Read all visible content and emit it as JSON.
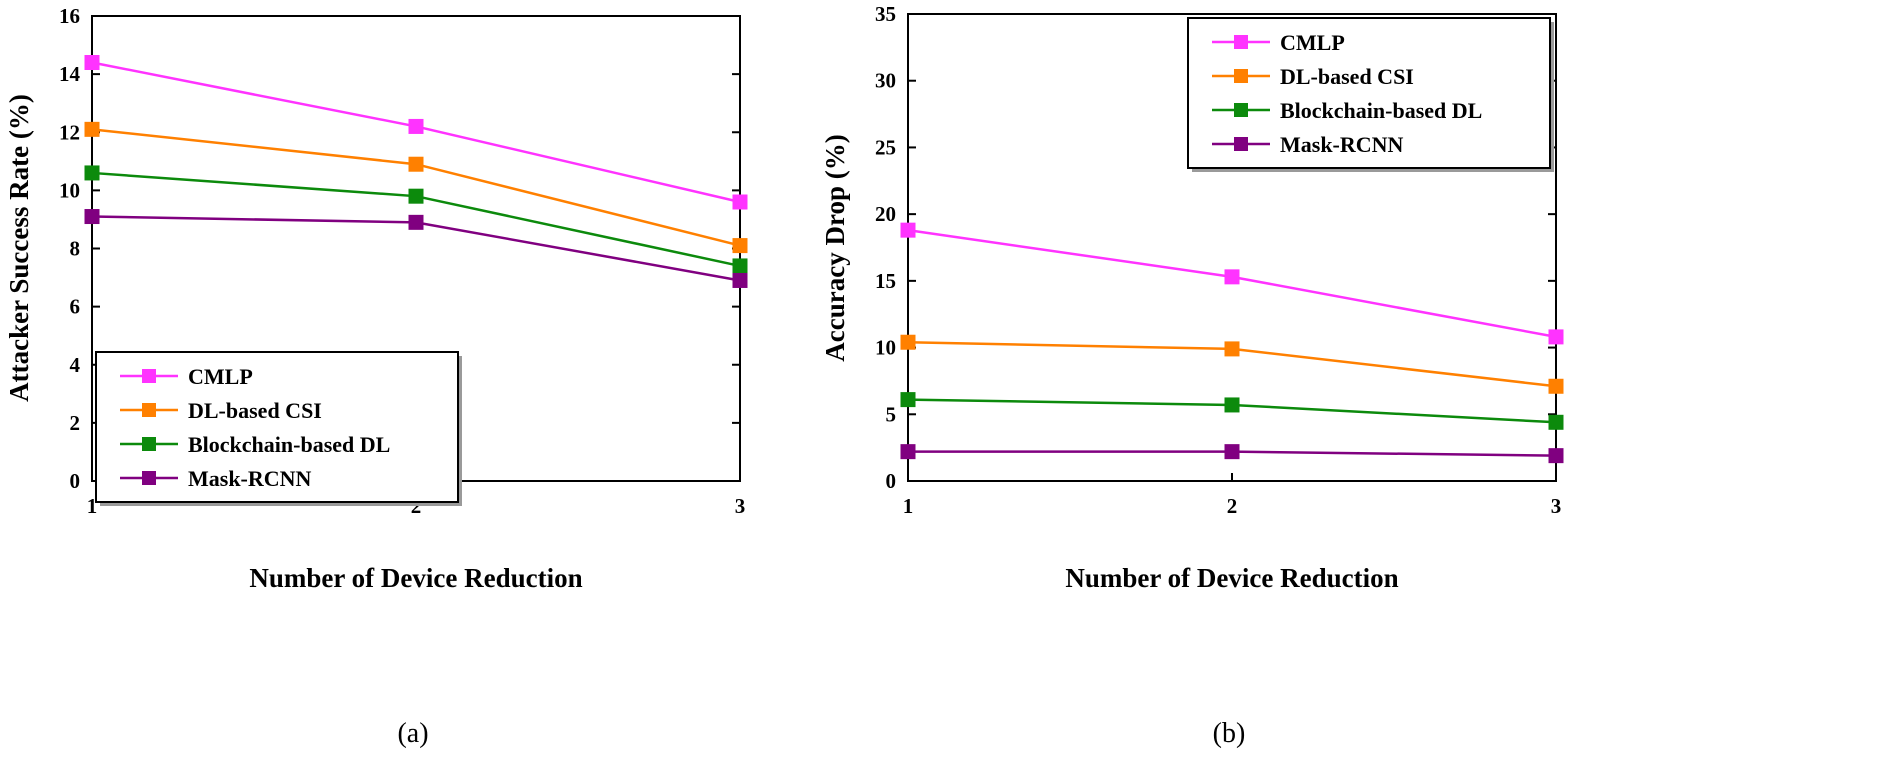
{
  "chart_data": [
    {
      "type": "line",
      "caption": "(a)",
      "xlabel": "Number of Device Reduction",
      "ylabel": "Attacker Success Rate (%)",
      "x": [
        1,
        2,
        3
      ],
      "xlim": [
        1,
        3
      ],
      "ylim": [
        0,
        16
      ],
      "xticks": [
        1,
        2,
        3
      ],
      "yticks": [
        0,
        2,
        4,
        6,
        8,
        10,
        12,
        14,
        16
      ],
      "grid": false,
      "legend_position": "bottom-left",
      "series": [
        {
          "name": "CMLP",
          "color": "#ff33ff",
          "values": [
            14.4,
            12.2,
            9.6
          ]
        },
        {
          "name": "DL-based CSI",
          "color": "#ff8000",
          "values": [
            12.1,
            10.9,
            8.1
          ]
        },
        {
          "name": "Blockchain-based DL",
          "color": "#0c8a0c",
          "values": [
            10.6,
            9.8,
            7.4
          ]
        },
        {
          "name": "Mask-RCNN",
          "color": "#800080",
          "values": [
            9.1,
            8.9,
            6.9
          ]
        }
      ]
    },
    {
      "type": "line",
      "caption": "(b)",
      "xlabel": "Number of Device Reduction",
      "ylabel": "Accuracy Drop (%)",
      "x": [
        1,
        2,
        3
      ],
      "xlim": [
        1,
        3
      ],
      "ylim": [
        0,
        35
      ],
      "xticks": [
        1,
        2,
        3
      ],
      "yticks": [
        0,
        5,
        10,
        15,
        20,
        25,
        30,
        35
      ],
      "grid": false,
      "legend_position": "top-right",
      "series": [
        {
          "name": "CMLP",
          "color": "#ff33ff",
          "values": [
            18.8,
            15.3,
            10.8
          ]
        },
        {
          "name": "DL-based CSI",
          "color": "#ff8000",
          "values": [
            10.4,
            9.9,
            7.1
          ]
        },
        {
          "name": "Blockchain-based DL",
          "color": "#0c8a0c",
          "values": [
            6.1,
            5.7,
            4.4
          ]
        },
        {
          "name": "Mask-RCNN",
          "color": "#800080",
          "values": [
            2.2,
            2.2,
            1.9
          ]
        }
      ]
    }
  ]
}
